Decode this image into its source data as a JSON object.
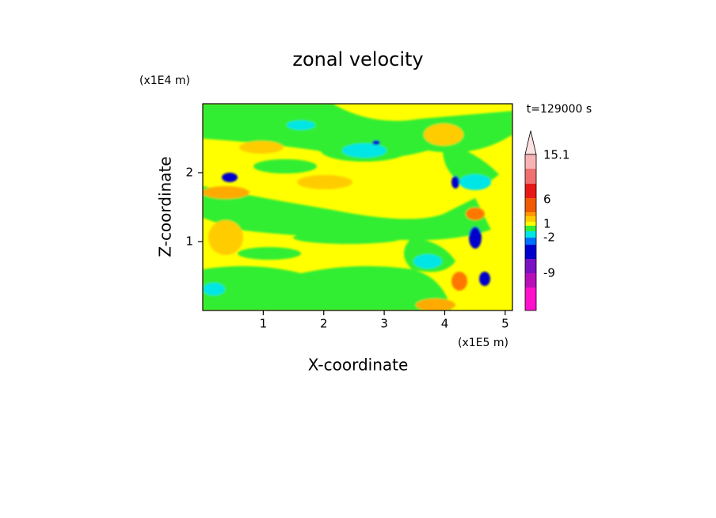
{
  "chart_data": {
    "type": "contour",
    "title": "zonal velocity",
    "x_label": "X-coordinate",
    "y_label": "Z-coordinate",
    "x_unit": "(x1E5 m)",
    "y_unit": "(x1E4 m)",
    "time_label": "t=129000 s",
    "xlim": [
      0,
      5.12
    ],
    "ylim": [
      0,
      3
    ],
    "xticks": [
      1,
      2,
      3,
      4,
      5
    ],
    "yticks": [
      1,
      2
    ],
    "colorbar_ticks": [
      15.1,
      6,
      1,
      -2,
      -9
    ]
  }
}
